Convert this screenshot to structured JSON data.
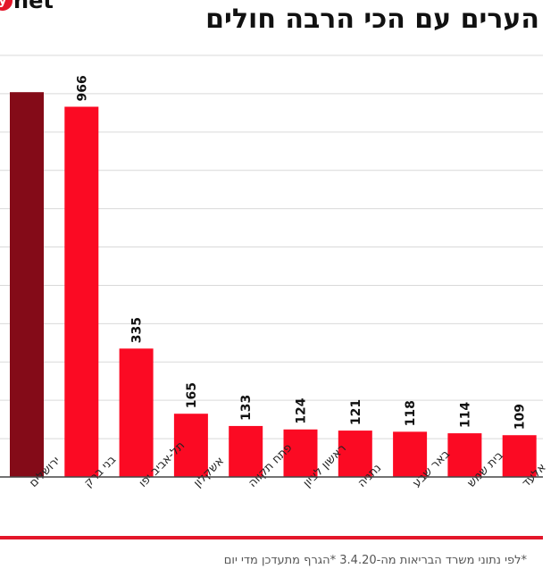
{
  "logo": {
    "mark": "y",
    "text": "net"
  },
  "title": "הערים עם הכי הרבה חולים",
  "footnote": "*לפי נתוני משרד הבריאות מה-3.4.20 *הגרף מתעדכן מדי יום",
  "colors": {
    "bar": "#fb0a23",
    "highlight_bar": "#840b18",
    "gridline": "#d9d9d9",
    "baseline": "#444444",
    "accent_line": "#e3162a"
  },
  "chart_data": {
    "type": "bar",
    "categories": [
      "ירושלים",
      "בני ברק",
      "תל-אביב יפו",
      "אשקלון",
      "פתח תקווה",
      "ראשון לציון",
      "נתניה",
      "באר שבע",
      "בית שמש",
      "אלעד"
    ],
    "values": [
      1004,
      966,
      335,
      165,
      133,
      124,
      121,
      118,
      114,
      109
    ],
    "value_labels": [
      "",
      "966",
      "335",
      "165",
      "133",
      "124",
      "121",
      "118",
      "114",
      "109"
    ],
    "highlight_index": 0,
    "ylim": [
      0,
      1100
    ],
    "grid": true,
    "title": "הערים עם הכי הרבה חולים",
    "xlabel": "",
    "ylabel": ""
  }
}
